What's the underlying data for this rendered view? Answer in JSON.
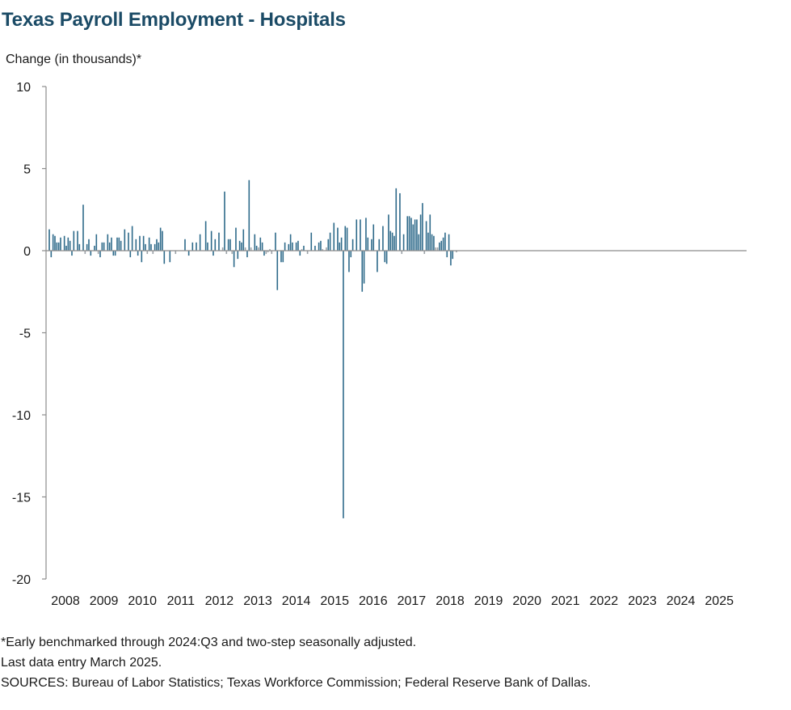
{
  "title": "Texas Payroll Employment - Hospitals",
  "colors": {
    "title": "#1b4b66",
    "bars_positive": "#2e6a8a",
    "bars_negative": "#2e6a8a",
    "bars_small": "#9aa0a6",
    "axis": "#8c8c8c"
  },
  "notes": [
    "*Early benchmarked through 2024:Q3 and two-step seasonally adjusted.",
    "Last data entry March 2025.",
    "SOURCES: Bureau of Labor Statistics; Texas Workforce Commission; Federal Reserve Bank of Dallas."
  ],
  "chart_data": {
    "type": "bar",
    "title": "Texas Payroll Employment - Hospitals",
    "ylabel": "Change (in thousands)*",
    "xlabel": "",
    "ylim": [
      -20,
      10
    ],
    "yticks": [
      10,
      5,
      0,
      -5,
      -10,
      -15,
      -20
    ],
    "grid": false,
    "legend": "none",
    "x_tick_labels": [
      "2008",
      "2009",
      "2010",
      "2011",
      "2012",
      "2013",
      "2014",
      "2015",
      "2016",
      "2017",
      "2018",
      "2019",
      "2020",
      "2021",
      "2022",
      "2023",
      "2024",
      "2025"
    ],
    "start": "2008-01",
    "frequency": "monthly",
    "values": [
      1.3,
      -0.4,
      1.0,
      0.9,
      0.5,
      0.5,
      0.8,
      0.0,
      0.9,
      0.3,
      0.8,
      0.6,
      -0.3,
      1.2,
      0.0,
      1.2,
      0.4,
      0.0,
      2.8,
      -0.2,
      0.4,
      0.7,
      -0.3,
      0.0,
      0.3,
      1.0,
      -0.2,
      -0.4,
      0.5,
      0.5,
      0.0,
      1.0,
      0.5,
      0.8,
      -0.3,
      -0.3,
      0.8,
      0.8,
      0.6,
      0.0,
      1.3,
      0.0,
      1.1,
      -0.4,
      1.5,
      0.0,
      0.7,
      -0.3,
      0.9,
      -0.7,
      0.9,
      0.4,
      -0.2,
      0.8,
      0.4,
      -0.2,
      0.4,
      0.7,
      0.5,
      1.4,
      1.2,
      -0.8,
      0.0,
      0.0,
      -0.7,
      0.0,
      0.0,
      -0.2,
      0.0,
      0.0,
      0.0,
      0.0,
      0.7,
      0.0,
      -0.3,
      0.0,
      0.5,
      0.0,
      0.5,
      0.0,
      1.0,
      0.0,
      0.0,
      1.8,
      0.5,
      0.0,
      1.2,
      -0.3,
      0.7,
      0.0,
      1.1,
      0.0,
      0.2,
      3.6,
      -0.2,
      0.7,
      0.7,
      -0.2,
      -1.0,
      1.4,
      -0.5,
      0.6,
      0.5,
      1.3,
      0.2,
      -0.4,
      4.3,
      0.2,
      0.0,
      1.0,
      0.3,
      0.2,
      0.8,
      0.5,
      -0.3,
      -0.2,
      -0.1,
      0.1,
      -0.2,
      0.0,
      1.1,
      -2.4,
      0.0,
      -0.7,
      -0.7,
      0.5,
      0.0,
      0.4,
      1.0,
      0.5,
      0.0,
      0.5,
      0.6,
      -0.3,
      0.1,
      0.3,
      0.0,
      -0.2,
      0.0,
      1.1,
      0.0,
      0.3,
      0.0,
      0.5,
      0.6,
      0.1,
      0.0,
      0.2,
      0.7,
      1.1,
      0.0,
      1.7,
      0.0,
      1.4,
      0.5,
      0.8,
      -16.3,
      1.5,
      1.4,
      -1.3,
      -0.4,
      0.7,
      0.0,
      1.9,
      0.0,
      1.9,
      -2.5,
      -2.0,
      2.0,
      0.8,
      0.0,
      0.7,
      1.6,
      0.0,
      -1.3,
      0.7,
      0.0,
      1.5,
      -0.7,
      -0.8,
      2.2,
      1.2,
      1.1,
      0.9,
      3.8,
      0.0,
      3.5,
      -0.2,
      1.0,
      0.0,
      2.1,
      2.1,
      2.0,
      1.6,
      1.9,
      1.9,
      1.0,
      2.2,
      2.9,
      -0.2,
      1.8,
      1.1,
      2.2,
      1.0,
      0.9,
      0.2,
      0.2,
      0.5,
      0.6,
      0.8,
      1.1,
      -0.4,
      1.0,
      -0.9,
      -0.5,
      0.0,
      -0.1,
      0.0,
      0.0
    ]
  }
}
